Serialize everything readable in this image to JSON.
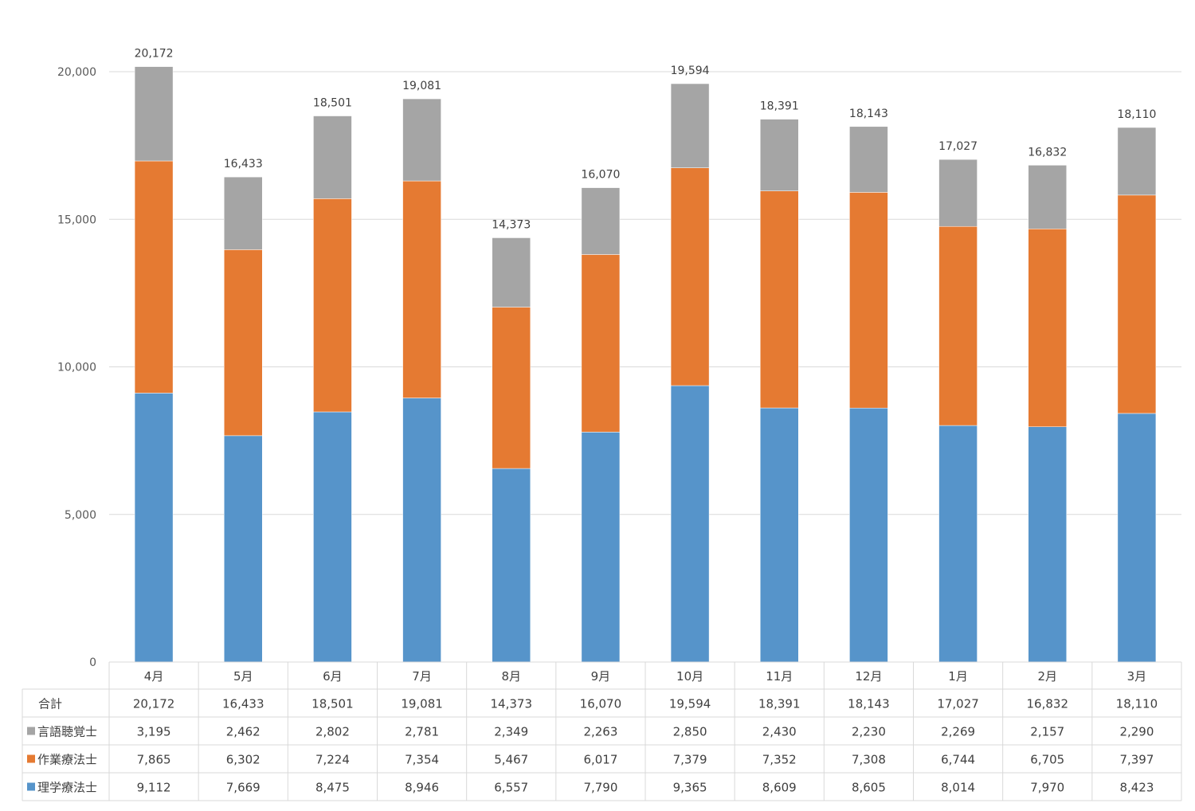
{
  "chart_data": {
    "type": "stacked-bar",
    "categories": [
      "4月",
      "5月",
      "6月",
      "7月",
      "8月",
      "9月",
      "10月",
      "11月",
      "12月",
      "1月",
      "2月",
      "3月"
    ],
    "y_ticks": [
      "0",
      "5,000",
      "10,000",
      "15,000",
      "20,000"
    ],
    "ylim": [
      0,
      20000
    ],
    "grid": true,
    "total": {
      "name": "合計",
      "values": [
        20172,
        16433,
        18501,
        19081,
        14373,
        16070,
        19594,
        18391,
        18143,
        17027,
        16832,
        18110
      ],
      "labels": [
        "20,172",
        "16,433",
        "18,501",
        "19,081",
        "14,373",
        "16,070",
        "19,594",
        "18,391",
        "18,143",
        "17,027",
        "16,832",
        "18,110"
      ]
    },
    "series": [
      {
        "name": "理学療法士",
        "color": "#5694CA",
        "values": [
          9112,
          7669,
          8475,
          8946,
          6557,
          7790,
          9365,
          8609,
          8605,
          8014,
          7970,
          8423
        ],
        "labels": [
          "9,112",
          "7,669",
          "8,475",
          "8,946",
          "6,557",
          "7,790",
          "9,365",
          "8,609",
          "8,605",
          "8,014",
          "7,970",
          "8,423"
        ]
      },
      {
        "name": "作業療法士",
        "color": "#E57A32",
        "values": [
          7865,
          6302,
          7224,
          7354,
          5467,
          6017,
          7379,
          7352,
          7308,
          6744,
          6705,
          7397
        ],
        "labels": [
          "7,865",
          "6,302",
          "7,224",
          "7,354",
          "5,467",
          "6,017",
          "7,379",
          "7,352",
          "7,308",
          "6,744",
          "6,705",
          "7,397"
        ]
      },
      {
        "name": "言語聴覚士",
        "color": "#A5A5A5",
        "values": [
          3195,
          2462,
          2802,
          2781,
          2349,
          2263,
          2850,
          2430,
          2230,
          2269,
          2157,
          2290
        ],
        "labels": [
          "3,195",
          "2,462",
          "2,802",
          "2,781",
          "2,349",
          "2,263",
          "2,850",
          "2,430",
          "2,230",
          "2,269",
          "2,157",
          "2,290"
        ]
      }
    ],
    "table_rows": [
      "合計",
      "言語聴覚士",
      "作業療法士",
      "理学療法士"
    ]
  }
}
